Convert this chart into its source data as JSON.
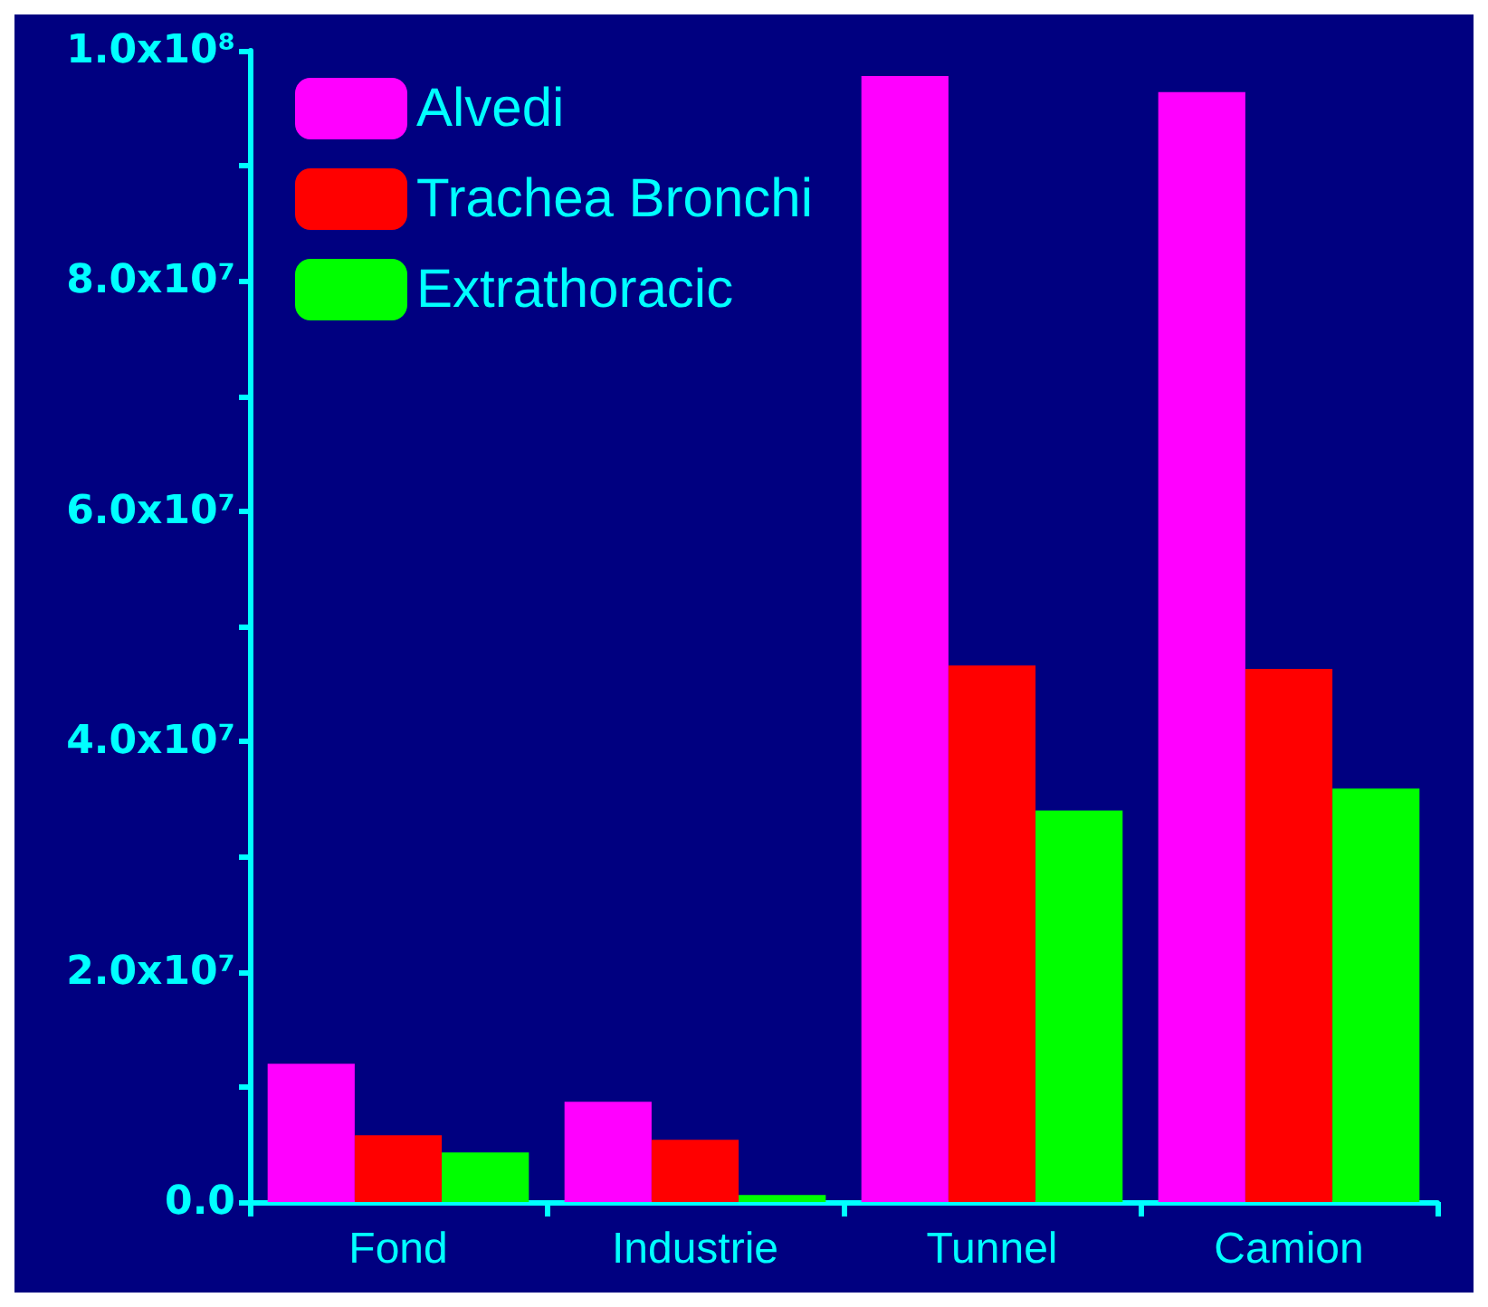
{
  "chart_data": {
    "type": "bar",
    "categories": [
      "Fond",
      "Industrie",
      "Tunnel",
      "Camion"
    ],
    "series": [
      {
        "name": "Alvedi",
        "color": "#ff00ff",
        "values": [
          12000000,
          8700000,
          97800000,
          96400000
        ]
      },
      {
        "name": "Trachea Bronchi",
        "color": "#ff0000",
        "values": [
          5800000,
          5400000,
          46600000,
          46300000
        ]
      },
      {
        "name": "Extrathoracic",
        "color": "#00ff00",
        "values": [
          4300000,
          600000,
          34000000,
          35900000
        ]
      }
    ],
    "ylim": [
      0,
      100000000
    ],
    "yticks": [
      {
        "value": 0,
        "label": "0.0"
      },
      {
        "value": 10000000,
        "label": null
      },
      {
        "value": 20000000,
        "label": "2.0x10⁷"
      },
      {
        "value": 30000000,
        "label": null
      },
      {
        "value": 40000000,
        "label": "4.0x10⁷"
      },
      {
        "value": 50000000,
        "label": null
      },
      {
        "value": 60000000,
        "label": "6.0x10⁷"
      },
      {
        "value": 70000000,
        "label": null
      },
      {
        "value": 80000000,
        "label": "8.0x10⁷"
      },
      {
        "value": 90000000,
        "label": null
      },
      {
        "value": 100000000,
        "label": "1.0x10⁸"
      }
    ],
    "grid": false,
    "legend": "top left"
  }
}
